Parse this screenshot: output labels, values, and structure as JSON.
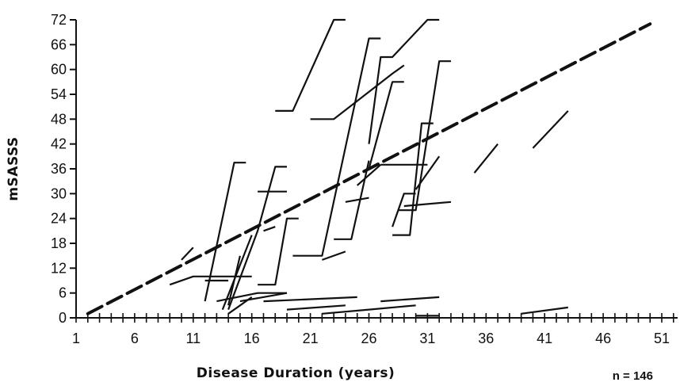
{
  "chart_data": {
    "type": "line",
    "title": "",
    "xlabel": "Disease Duration (years)",
    "ylabel": "mSASSS",
    "annotation": "n = 146",
    "xlim": [
      1,
      54
    ],
    "ylim": [
      0,
      72
    ],
    "x_ticks": [
      1,
      6,
      11,
      16,
      21,
      26,
      31,
      36,
      41,
      46,
      51
    ],
    "y_ticks": [
      0,
      6,
      12,
      18,
      24,
      30,
      36,
      42,
      48,
      54,
      60,
      66,
      72
    ],
    "colors": {
      "lines": "#111111",
      "axis": "#111111",
      "background": "#ffffff"
    },
    "trend_line": {
      "style": "dashed",
      "points": [
        [
          2,
          1
        ],
        [
          50,
          71
        ]
      ]
    },
    "series": [
      {
        "points": [
          [
            9,
            8
          ],
          [
            11,
            10
          ],
          [
            16,
            10
          ]
        ]
      },
      {
        "points": [
          [
            12,
            9
          ],
          [
            14,
            9
          ]
        ]
      },
      {
        "points": [
          [
            10,
            14
          ],
          [
            11,
            17
          ]
        ]
      },
      {
        "points": [
          [
            12,
            4
          ],
          [
            14.5,
            37.5
          ],
          [
            15.5,
            37.5
          ]
        ]
      },
      {
        "points": [
          [
            13.5,
            2
          ],
          [
            16,
            20
          ]
        ]
      },
      {
        "points": [
          [
            14,
            3
          ],
          [
            15,
            15
          ]
        ]
      },
      {
        "points": [
          [
            13,
            4
          ],
          [
            16.5,
            6
          ],
          [
            19,
            6
          ]
        ]
      },
      {
        "points": [
          [
            15,
            4
          ],
          [
            19,
            6
          ]
        ]
      },
      {
        "points": [
          [
            14,
            1
          ],
          [
            16,
            5
          ]
        ]
      },
      {
        "points": [
          [
            14,
            2
          ],
          [
            16.5,
            21
          ],
          [
            18,
            36.5
          ],
          [
            19,
            36.5
          ]
        ]
      },
      {
        "points": [
          [
            16.5,
            30.5
          ],
          [
            19,
            30.5
          ]
        ]
      },
      {
        "points": [
          [
            16.5,
            8
          ],
          [
            18,
            8
          ],
          [
            19,
            24
          ],
          [
            20,
            24
          ]
        ]
      },
      {
        "points": [
          [
            17,
            21
          ],
          [
            18,
            22
          ]
        ]
      },
      {
        "points": [
          [
            18,
            50
          ],
          [
            19.5,
            50
          ],
          [
            23,
            72
          ],
          [
            24,
            72
          ]
        ]
      },
      {
        "points": [
          [
            17,
            4
          ],
          [
            25,
            5
          ]
        ]
      },
      {
        "points": [
          [
            19,
            2
          ],
          [
            24,
            3
          ]
        ]
      },
      {
        "points": [
          [
            19.5,
            15
          ],
          [
            22,
            15
          ],
          [
            26,
            67.5
          ],
          [
            27,
            67.5
          ]
        ]
      },
      {
        "points": [
          [
            22,
            14
          ],
          [
            24,
            16
          ]
        ]
      },
      {
        "points": [
          [
            22,
            1
          ],
          [
            26,
            2
          ]
        ]
      },
      {
        "points": [
          [
            21,
            48
          ],
          [
            23,
            48
          ],
          [
            28,
            59
          ],
          [
            29,
            61
          ]
        ]
      },
      {
        "points": [
          [
            23,
            19
          ],
          [
            24.5,
            19
          ],
          [
            26,
            38
          ]
        ]
      },
      {
        "points": [
          [
            24,
            28
          ],
          [
            26,
            29
          ]
        ]
      },
      {
        "points": [
          [
            25,
            32
          ],
          [
            27,
            37
          ]
        ]
      },
      {
        "points": [
          [
            26,
            36
          ],
          [
            28,
            57
          ],
          [
            29,
            57
          ]
        ]
      },
      {
        "points": [
          [
            26,
            42
          ],
          [
            27,
            63
          ],
          [
            28,
            63
          ],
          [
            31,
            72
          ],
          [
            32,
            72
          ]
        ]
      },
      {
        "points": [
          [
            27,
            37
          ],
          [
            31,
            37
          ]
        ]
      },
      {
        "points": [
          [
            28,
            20
          ],
          [
            29.5,
            20
          ],
          [
            30.5,
            47
          ],
          [
            31.5,
            47
          ]
        ]
      },
      {
        "points": [
          [
            28,
            22
          ],
          [
            29,
            30
          ],
          [
            30,
            30
          ]
        ]
      },
      {
        "points": [
          [
            28.5,
            26
          ],
          [
            30,
            26
          ],
          [
            32,
            62
          ],
          [
            33,
            62
          ]
        ]
      },
      {
        "points": [
          [
            29,
            27
          ],
          [
            33,
            28
          ]
        ]
      },
      {
        "points": [
          [
            30,
            31
          ],
          [
            32,
            39
          ]
        ]
      },
      {
        "points": [
          [
            27,
            4
          ],
          [
            32,
            5
          ]
        ]
      },
      {
        "points": [
          [
            26,
            2
          ],
          [
            30,
            3
          ]
        ]
      },
      {
        "points": [
          [
            30,
            0.5
          ],
          [
            32,
            0.5
          ]
        ]
      },
      {
        "points": [
          [
            35,
            35
          ],
          [
            37,
            42
          ]
        ]
      },
      {
        "points": [
          [
            40,
            41
          ],
          [
            43,
            50
          ]
        ]
      },
      {
        "points": [
          [
            39,
            1
          ],
          [
            43,
            2.5
          ]
        ]
      }
    ]
  }
}
